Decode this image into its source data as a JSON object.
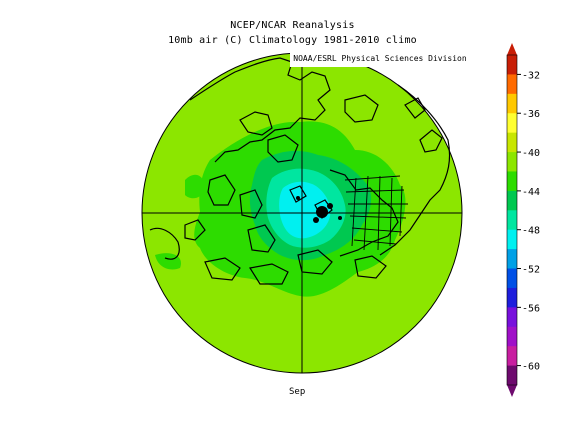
{
  "title_line1": "NCEP/NCAR Reanalysis",
  "title_line2": "10mb air (C) Climatology 1981-2010 climo",
  "credit": "NOAA/ESRL Physical Sciences Division",
  "month": "Sep",
  "colorbar": {
    "labels": [
      "-32",
      "-36",
      "-40",
      "-44",
      "-48",
      "-52",
      "-56",
      "-60"
    ],
    "colors": [
      "#c81e06",
      "#ff6a00",
      "#ffc800",
      "#ffff30",
      "#c8e600",
      "#8ce600",
      "#2ddc00",
      "#00c850",
      "#00e6a0",
      "#00f0f0",
      "#00a0e6",
      "#0050e6",
      "#1e1edc",
      "#7810dc",
      "#a010c8",
      "#c81ea0",
      "#6e0a6e"
    ]
  },
  "map_colors": {
    "base": "#8ce600",
    "band": "#2ddc00",
    "cool": "#00c850",
    "cooler": "#00e6a0",
    "core": "#00f0f0"
  }
}
